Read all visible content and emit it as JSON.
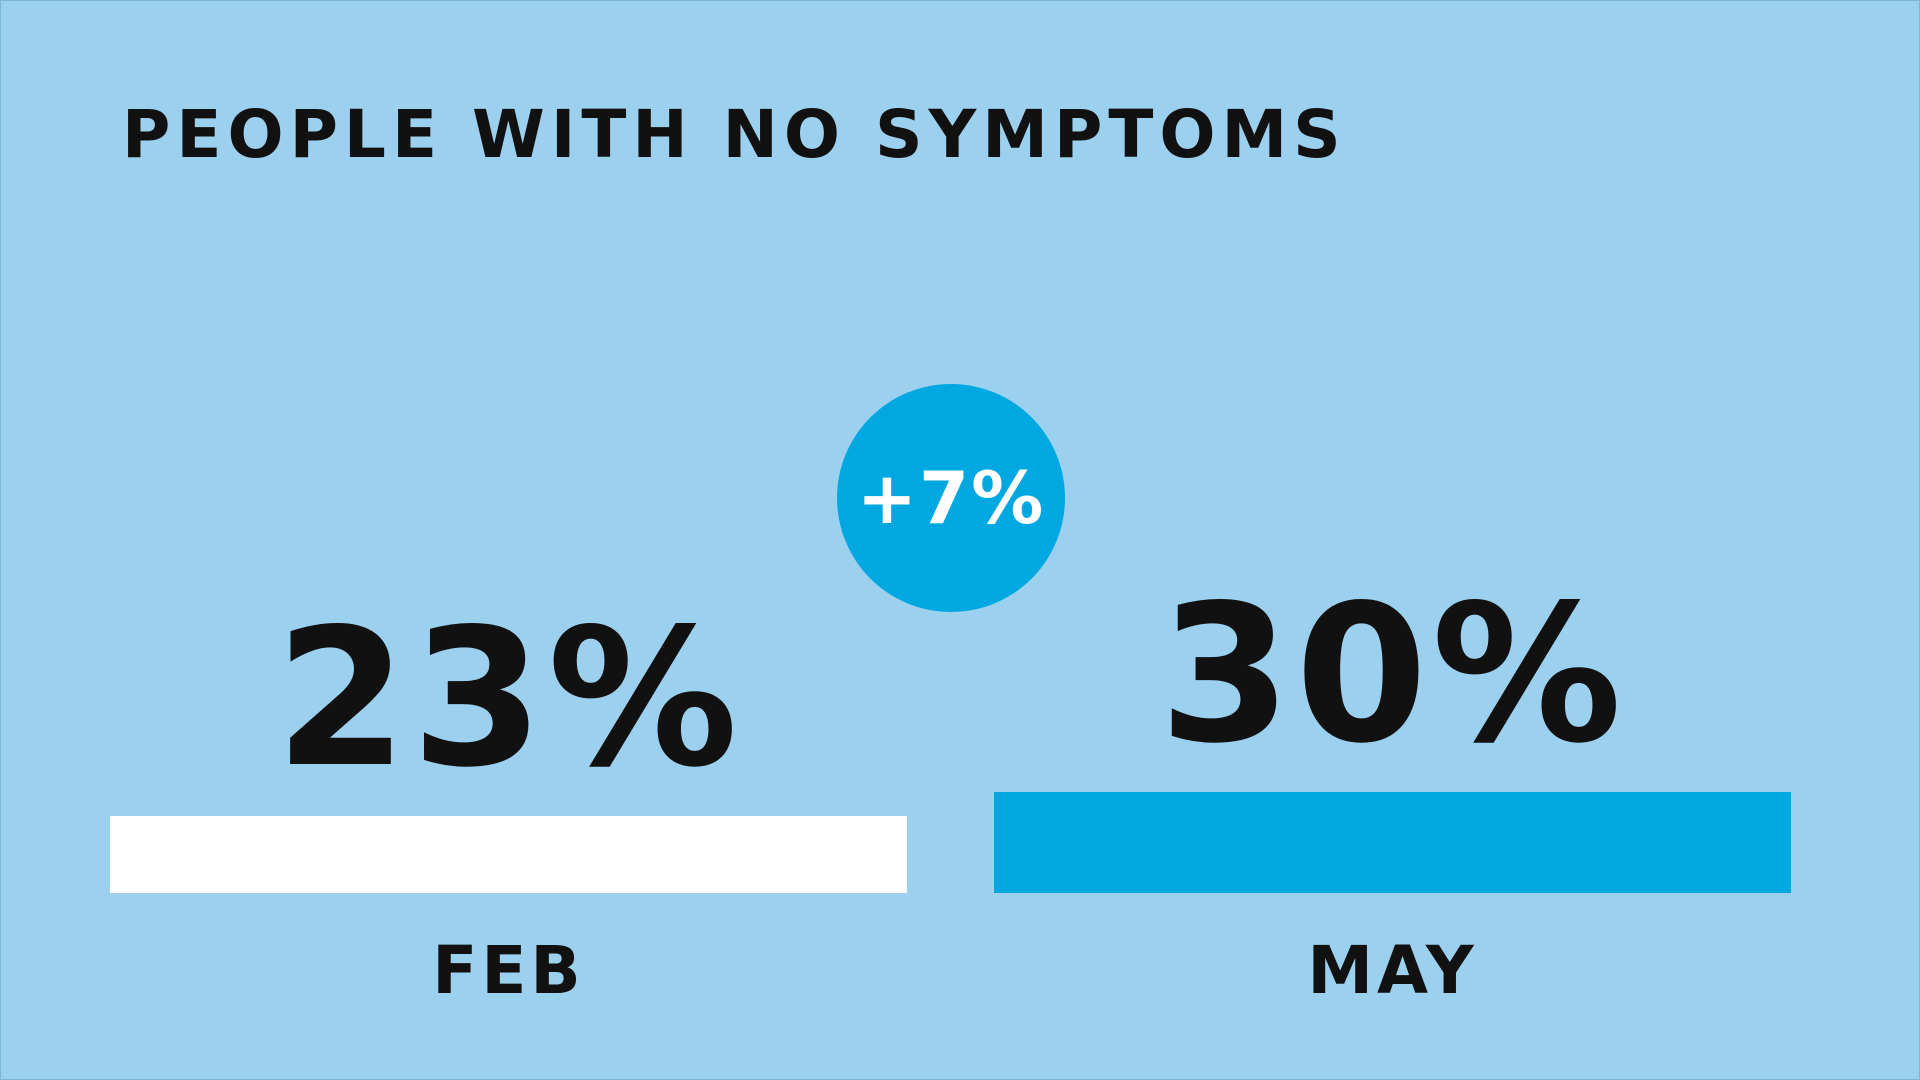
{
  "colors": {
    "background": "#9bd0ef",
    "feb_bar": "#ffffff",
    "may_bar": "#00a8e1",
    "badge": "#00a8e1",
    "text": "#111111"
  },
  "badge": {
    "text": "+7%"
  },
  "chart_data": {
    "type": "bar",
    "title": "PEOPLE WITH NO SYMPTOMS",
    "categories": [
      "FEB",
      "MAY"
    ],
    "values": [
      23,
      30
    ],
    "value_labels": [
      "23%",
      "30%"
    ],
    "ylim": [
      0,
      30
    ],
    "grid": false,
    "legend": "none"
  }
}
